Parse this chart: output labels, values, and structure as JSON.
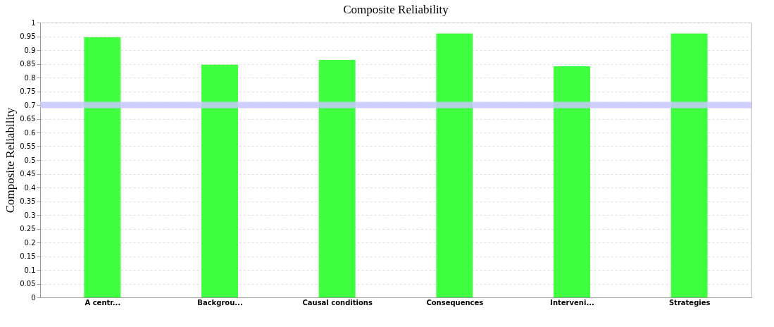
{
  "chart_data": {
    "type": "bar",
    "title": "Composite Reliability",
    "ylabel": "Composite Reliability",
    "categories": [
      "A centr...",
      "Backgrou...",
      "Causal conditions",
      "Consequences",
      "Interveni...",
      "Strategies"
    ],
    "values": [
      0.947,
      0.847,
      0.864,
      0.96,
      0.841,
      0.96
    ],
    "color": "#40ff40",
    "ylim": [
      0,
      1
    ],
    "yticks": [
      0,
      0.05,
      0.1,
      0.15,
      0.2,
      0.25,
      0.3,
      0.35,
      0.4,
      0.45,
      0.5,
      0.55,
      0.6,
      0.65,
      0.7,
      0.75,
      0.8,
      0.85,
      0.9,
      0.95,
      1
    ],
    "grid": "y",
    "ref_lines": [
      {
        "axis": "y",
        "value": 0.7,
        "label": null,
        "color": "#c8c8ff"
      }
    ]
  }
}
